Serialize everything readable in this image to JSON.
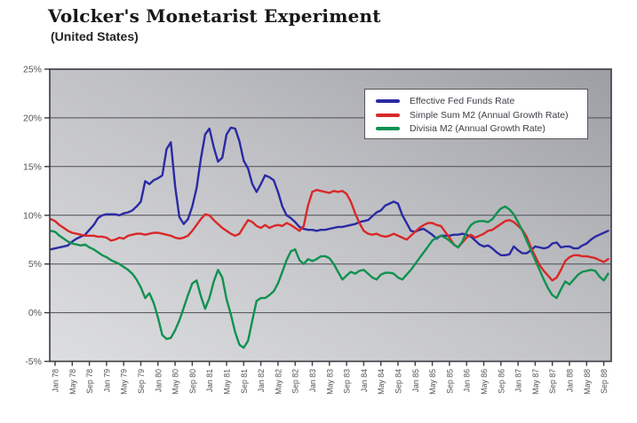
{
  "title": "Volcker's Monetarist Experiment",
  "subtitle": "(United States)",
  "chart_data": {
    "type": "line",
    "title": "Volcker's Monetarist Experiment",
    "subtitle": "(United States)",
    "x_frequency": "monthly",
    "x_start": "Dec 1977",
    "x_end": "Oct 1988",
    "ylim": [
      -5,
      25
    ],
    "grid": "horizontal",
    "legend_position": "top-right",
    "y_ticks": [
      {
        "label": "25%",
        "value": 25
      },
      {
        "label": "20%",
        "value": 20
      },
      {
        "label": "15%",
        "value": 15
      },
      {
        "label": "10%",
        "value": 10
      },
      {
        "label": "5%",
        "value": 5
      },
      {
        "label": "0%",
        "value": 0
      },
      {
        "label": "-5%",
        "value": -5
      }
    ],
    "x_tick_labels": [
      "Jan 78",
      "May 78",
      "Sep 78",
      "Jan 79",
      "May 79",
      "Sep 79",
      "Jan 80",
      "May 80",
      "Sep 80",
      "Jan 81",
      "May 81",
      "Sep 81",
      "Jan 82",
      "May 82",
      "Sep 82",
      "Jan 83",
      "May 83",
      "Sep 83",
      "Jan 84",
      "May 84",
      "Sep 84",
      "Jan 85",
      "May 85",
      "Sep 85",
      "Jan 86",
      "May 86",
      "Sep 86",
      "Jan 87",
      "May 87",
      "Sep 87",
      "Jan 88",
      "May 88",
      "Sep 88"
    ],
    "series": [
      {
        "name": "Effective Fed Funds Rate",
        "color": "#2a2aa4",
        "values": [
          6.5,
          6.6,
          6.7,
          6.8,
          6.9,
          7.3,
          7.6,
          7.8,
          8.0,
          8.5,
          9.0,
          9.7,
          10.0,
          10.1,
          10.1,
          10.1,
          10.0,
          10.2,
          10.3,
          10.5,
          10.9,
          11.4,
          13.5,
          13.2,
          13.6,
          13.8,
          14.1,
          16.8,
          17.5,
          13.0,
          9.8,
          9.1,
          9.6,
          10.9,
          12.8,
          15.8,
          18.3,
          18.9,
          17.0,
          15.5,
          15.9,
          18.3,
          19.0,
          18.9,
          17.6,
          15.6,
          14.8,
          13.2,
          12.4,
          13.2,
          14.1,
          13.9,
          13.6,
          12.4,
          10.9,
          10.0,
          9.7,
          9.3,
          8.8,
          8.6,
          8.5,
          8.5,
          8.4,
          8.5,
          8.5,
          8.6,
          8.7,
          8.8,
          8.8,
          8.9,
          9.0,
          9.1,
          9.3,
          9.4,
          9.5,
          9.9,
          10.3,
          10.5,
          11.0,
          11.2,
          11.4,
          11.2,
          10.0,
          9.2,
          8.4,
          8.3,
          8.5,
          8.6,
          8.3,
          8.0,
          7.6,
          7.9,
          7.9,
          7.9,
          8.0,
          8.0,
          8.1,
          8.0,
          7.8,
          7.4,
          7.0,
          6.8,
          6.9,
          6.6,
          6.2,
          5.9,
          5.9,
          6.0,
          6.8,
          6.4,
          6.1,
          6.1,
          6.4,
          6.8,
          6.7,
          6.6,
          6.7,
          7.1,
          7.2,
          6.7,
          6.8,
          6.8,
          6.6,
          6.6,
          6.9,
          7.1,
          7.5,
          7.8,
          8.0,
          8.2,
          8.4
        ]
      },
      {
        "name": "Simple Sum M2 (Annual Growth Rate)",
        "color": "#d92828",
        "values": [
          9.6,
          9.4,
          9.0,
          8.7,
          8.4,
          8.2,
          8.1,
          8.0,
          7.9,
          7.9,
          7.9,
          7.8,
          7.8,
          7.7,
          7.4,
          7.5,
          7.7,
          7.6,
          7.9,
          8.0,
          8.1,
          8.1,
          8.0,
          8.1,
          8.2,
          8.2,
          8.1,
          8.0,
          7.9,
          7.7,
          7.6,
          7.7,
          7.9,
          8.4,
          9.0,
          9.6,
          10.1,
          10.0,
          9.5,
          9.1,
          8.7,
          8.4,
          8.1,
          7.9,
          8.1,
          8.8,
          9.5,
          9.3,
          8.9,
          8.7,
          9.0,
          8.7,
          8.9,
          9.0,
          8.9,
          9.2,
          9.0,
          8.7,
          8.4,
          8.9,
          11.0,
          12.4,
          12.6,
          12.5,
          12.4,
          12.3,
          12.5,
          12.4,
          12.5,
          12.2,
          11.4,
          10.2,
          9.2,
          8.4,
          8.1,
          8.0,
          8.1,
          7.9,
          7.8,
          7.9,
          8.1,
          7.9,
          7.7,
          7.5,
          7.9,
          8.3,
          8.7,
          9.0,
          9.2,
          9.2,
          9.0,
          8.9,
          8.3,
          7.7,
          7.0,
          6.7,
          7.2,
          7.7,
          8.0,
          7.7,
          7.9,
          8.1,
          8.4,
          8.5,
          8.8,
          9.1,
          9.4,
          9.5,
          9.3,
          8.9,
          8.5,
          7.8,
          6.7,
          5.8,
          4.9,
          4.3,
          3.8,
          3.3,
          3.6,
          4.4,
          5.3,
          5.7,
          5.9,
          5.9,
          5.8,
          5.8,
          5.7,
          5.6,
          5.4,
          5.2,
          5.5
        ]
      },
      {
        "name": "Divisia M2 (Annual Growth Rate)",
        "color": "#119150",
        "values": [
          8.4,
          8.3,
          7.9,
          7.6,
          7.3,
          7.1,
          7.0,
          6.9,
          7.0,
          6.7,
          6.5,
          6.2,
          5.9,
          5.7,
          5.4,
          5.2,
          5.0,
          4.7,
          4.4,
          4.0,
          3.4,
          2.6,
          1.5,
          2.0,
          1.0,
          -0.5,
          -2.3,
          -2.7,
          -2.6,
          -1.8,
          -0.8,
          0.5,
          1.8,
          3.0,
          3.3,
          1.7,
          0.4,
          1.5,
          3.2,
          4.4,
          3.6,
          1.4,
          -0.2,
          -2.0,
          -3.3,
          -3.6,
          -2.9,
          -0.8,
          1.2,
          1.5,
          1.5,
          1.8,
          2.2,
          3.0,
          4.2,
          5.4,
          6.3,
          6.5,
          5.4,
          5.0,
          5.5,
          5.3,
          5.5,
          5.8,
          5.8,
          5.6,
          5.0,
          4.2,
          3.4,
          3.8,
          4.2,
          4.0,
          4.3,
          4.4,
          4.0,
          3.6,
          3.4,
          3.9,
          4.1,
          4.1,
          4.0,
          3.6,
          3.4,
          3.9,
          4.4,
          5.0,
          5.6,
          6.2,
          6.8,
          7.4,
          7.7,
          7.9,
          7.7,
          7.4,
          7.0,
          6.7,
          7.3,
          8.3,
          9.0,
          9.3,
          9.4,
          9.4,
          9.3,
          9.6,
          10.2,
          10.7,
          10.9,
          10.6,
          10.1,
          9.3,
          8.4,
          7.4,
          6.4,
          5.4,
          4.4,
          3.4,
          2.5,
          1.8,
          1.5,
          2.4,
          3.2,
          2.9,
          3.4,
          3.9,
          4.2,
          4.3,
          4.4,
          4.3,
          3.7,
          3.3,
          4.0
        ]
      }
    ]
  }
}
